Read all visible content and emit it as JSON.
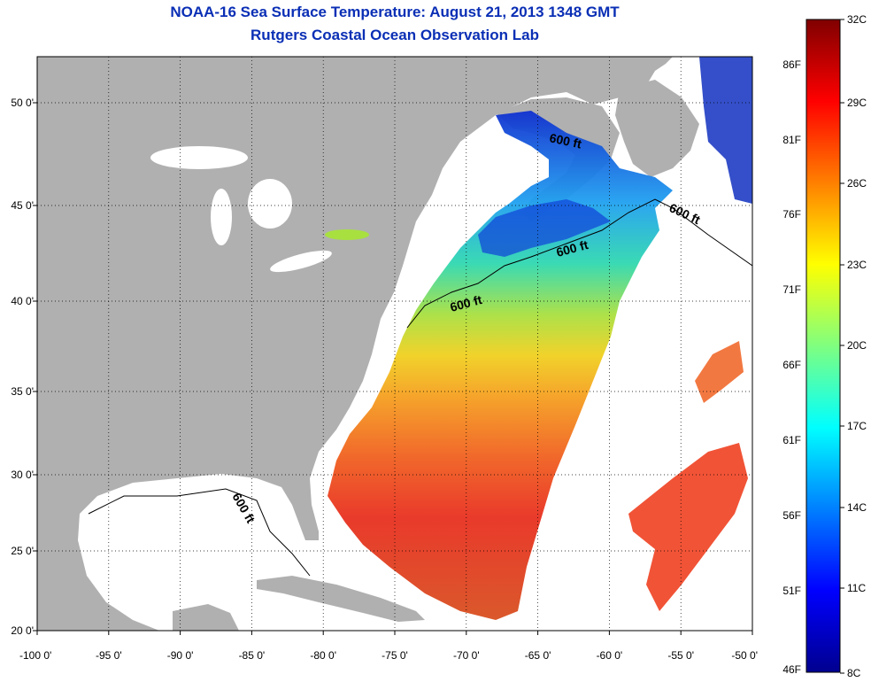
{
  "header": {
    "title": "NOAA-16 Sea Surface Temperature:  August 21, 2013 1348 GMT",
    "subtitle": "Rutgers Coastal Ocean Observation Lab"
  },
  "map": {
    "lon_ticks": [
      "-100 0'",
      "-95 0'",
      "-90 0'",
      "-85 0'",
      "-80 0'",
      "-75 0'",
      "-70 0'",
      "-65 0'",
      "-60 0'",
      "-55 0'",
      "-50 0'"
    ],
    "lat_ticks": [
      "20 0'",
      "25 0'",
      "30 0'",
      "35 0'",
      "40 0'",
      "45 0'",
      "50 0'"
    ],
    "contour_labels": [
      "600 ft",
      "600 ft",
      "600 ft",
      "600 ft",
      "600 ft"
    ],
    "colors": {
      "land": "#b0b0b0",
      "nodata": "#ffffff"
    }
  },
  "colorbar": {
    "fahrenheit_labels": [
      "86F",
      "81F",
      "76F",
      "71F",
      "66F",
      "61F",
      "56F",
      "51F",
      "46F"
    ],
    "celsius_labels": [
      "32C",
      "29C",
      "26C",
      "23C",
      "20C",
      "17C",
      "14C",
      "11C",
      "8C"
    ],
    "colormap": "jet"
  }
}
